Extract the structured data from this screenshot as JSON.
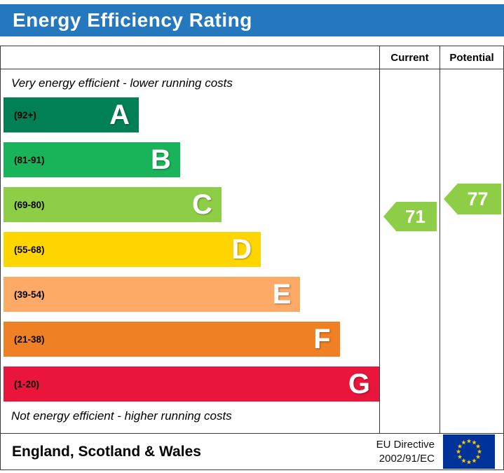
{
  "title": "Energy Efficiency Rating",
  "header": {
    "current": "Current",
    "potential": "Potential"
  },
  "top_note": "Very energy efficient - lower running costs",
  "bottom_note": "Not energy efficient - higher running costs",
  "footer": {
    "region": "England, Scotland & Wales",
    "directive_line1": "EU Directive",
    "directive_line2": "2002/91/EC"
  },
  "colors": {
    "title_bg": "#2577be",
    "arrow_current": "#8dce46",
    "arrow_potential": "#8dce46",
    "eu_flag_blue": "#003399",
    "eu_flag_star": "#ffcc00"
  },
  "chart_data": {
    "type": "bar",
    "subtype": "epc-energy-efficiency-rating",
    "title": "Energy Efficiency Rating",
    "bands": [
      {
        "letter": "A",
        "label": "(92+)",
        "min": 92,
        "max": 100,
        "color": "#008054",
        "width_pct": 36
      },
      {
        "letter": "B",
        "label": "(81-91)",
        "min": 81,
        "max": 91,
        "color": "#19b459",
        "width_pct": 47
      },
      {
        "letter": "C",
        "label": "(69-80)",
        "min": 69,
        "max": 80,
        "color": "#8dce46",
        "width_pct": 58
      },
      {
        "letter": "D",
        "label": "(55-68)",
        "min": 55,
        "max": 68,
        "color": "#ffd500",
        "width_pct": 68.5
      },
      {
        "letter": "E",
        "label": "(39-54)",
        "min": 39,
        "max": 54,
        "color": "#fcaa65",
        "width_pct": 79
      },
      {
        "letter": "F",
        "label": "(21-38)",
        "min": 21,
        "max": 38,
        "color": "#ef8023",
        "width_pct": 89.5
      },
      {
        "letter": "G",
        "label": "(1-20)",
        "min": 1,
        "max": 20,
        "color": "#e9153b",
        "width_pct": 100
      }
    ],
    "current": {
      "column": "Current",
      "value": 71,
      "band": "C",
      "color": "#8dce46"
    },
    "potential": {
      "column": "Potential",
      "value": 77,
      "band": "C",
      "color": "#8dce46"
    }
  }
}
